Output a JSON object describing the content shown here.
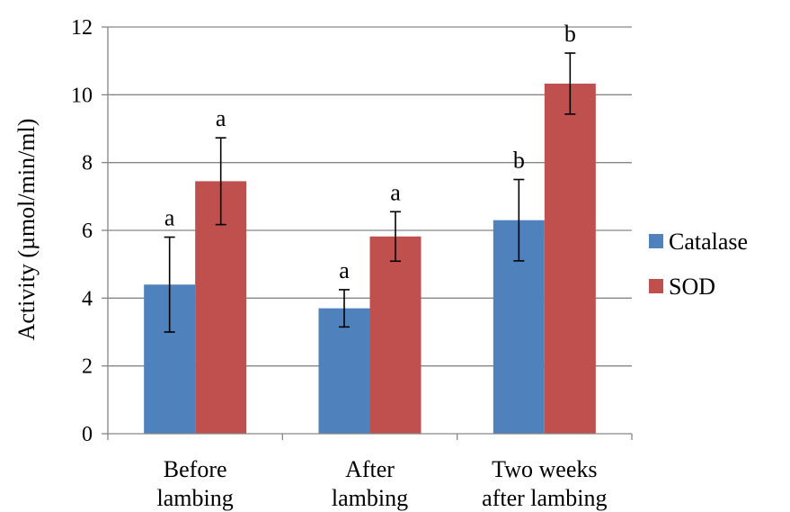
{
  "chart_data": {
    "type": "bar",
    "ylabel": "Activity (µmol/min/ml)",
    "ylim": [
      0,
      12
    ],
    "yticks": [
      0,
      2,
      4,
      6,
      8,
      10,
      12
    ],
    "grid": true,
    "legend_position": "right",
    "categories": [
      [
        "Before",
        "lambing"
      ],
      [
        "After",
        "lambing"
      ],
      [
        "Two weeks",
        "after lambing"
      ]
    ],
    "series": [
      {
        "name": "Catalase",
        "color": "#4f81bd",
        "values": [
          4.4,
          3.7,
          6.3
        ],
        "errors": [
          1.4,
          0.55,
          1.2
        ],
        "labels": [
          "a",
          "a",
          "b"
        ]
      },
      {
        "name": "SOD",
        "color": "#c0504d",
        "values": [
          7.45,
          5.82,
          10.33
        ],
        "errors": [
          1.28,
          0.73,
          0.9
        ],
        "labels": [
          "a",
          "a",
          "b"
        ]
      }
    ]
  }
}
